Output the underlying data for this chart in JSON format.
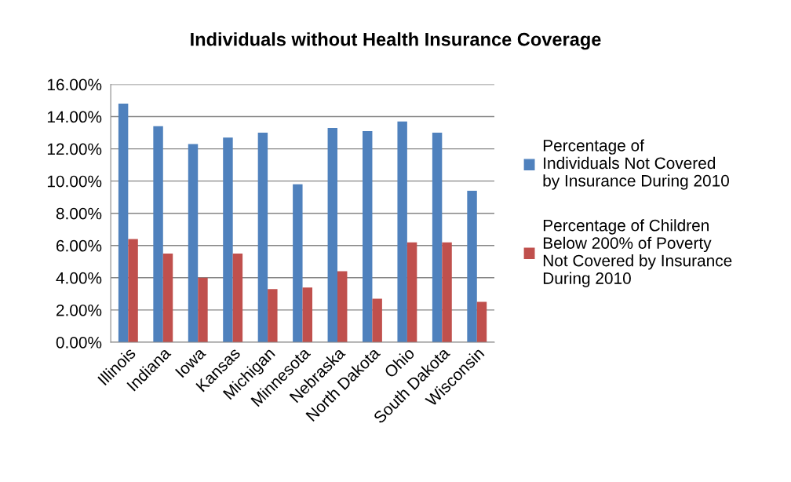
{
  "chart_data": {
    "type": "bar",
    "title": "Individuals without Health Insurance Coverage",
    "categories": [
      "Illinois",
      "Indiana",
      "Iowa",
      "Kansas",
      "Michigan",
      "Minnesota",
      "Nebraska",
      "North Dakota",
      "Ohio",
      "South Dakota",
      "Wisconsin"
    ],
    "series": [
      {
        "name": "Percentage of Individuals Not Covered by Insurance During 2010",
        "color": "#4f81bd",
        "values": [
          14.8,
          13.4,
          12.3,
          12.7,
          13.0,
          9.8,
          13.3,
          13.1,
          13.7,
          13.0,
          9.4
        ]
      },
      {
        "name": "Percentage of Children Below 200% of Poverty Not Covered by Insurance During 2010",
        "color": "#c0504d",
        "values": [
          6.4,
          5.5,
          4.0,
          5.5,
          3.3,
          3.4,
          4.4,
          2.7,
          6.2,
          6.2,
          2.5
        ]
      }
    ],
    "ylim": [
      0,
      16
    ],
    "yticks": [
      {
        "value": 0,
        "label": "0.00%"
      },
      {
        "value": 2,
        "label": "2.00%"
      },
      {
        "value": 4,
        "label": "4.00%"
      },
      {
        "value": 6,
        "label": "6.00%"
      },
      {
        "value": 8,
        "label": "8.00%"
      },
      {
        "value": 10,
        "label": "10.00%"
      },
      {
        "value": 12,
        "label": "12.00%"
      },
      {
        "value": 14,
        "label": "14.00%"
      },
      {
        "value": 16,
        "label": "16.00%"
      }
    ],
    "grid": "y",
    "legend": "right"
  }
}
